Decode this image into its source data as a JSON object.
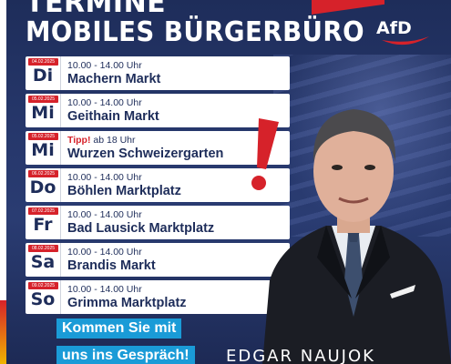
{
  "header": {
    "line1": "TERMINE",
    "line2": "MOBILES BÜRGERBÜRO",
    "logo_text": "AfD"
  },
  "schedule": [
    {
      "date": "04.02.2025",
      "day": "Di",
      "prefix": "",
      "time": "10.00 - 14.00 Uhr",
      "place": "Machern Markt"
    },
    {
      "date": "05.02.2025",
      "day": "Mi",
      "prefix": "",
      "time": "10.00 - 14.00 Uhr",
      "place": "Geithain Markt"
    },
    {
      "date": "05.02.2025",
      "day": "Mi",
      "prefix": "Tipp!",
      "time": "ab 18 Uhr",
      "place": "Wurzen Schweizergarten"
    },
    {
      "date": "06.02.2025",
      "day": "Do",
      "prefix": "",
      "time": "10.00 - 14.00 Uhr",
      "place": "Böhlen Marktplatz"
    },
    {
      "date": "07.02.2025",
      "day": "Fr",
      "prefix": "",
      "time": "10.00 - 14.00 Uhr",
      "place": "Bad Lausick Marktplatz"
    },
    {
      "date": "08.02.2025",
      "day": "Sa",
      "prefix": "",
      "time": "10.00 - 14.00 Uhr",
      "place": "Brandis Markt"
    },
    {
      "date": "09.02.2025",
      "day": "So",
      "prefix": "",
      "time": "10.00 - 14.00 Uhr",
      "place": "Grimma Marktplatz"
    }
  ],
  "cta": {
    "line1": "Kommen Sie mit",
    "line2": "uns ins Gespräch!"
  },
  "person_name": "EDGAR NAUJOK",
  "colors": {
    "navy": "#1e2d5a",
    "red": "#d6222a",
    "cta_blue": "#1a9bd7"
  },
  "icons": [
    "afd-logo",
    "exclamation-mark",
    "person-portrait"
  ]
}
